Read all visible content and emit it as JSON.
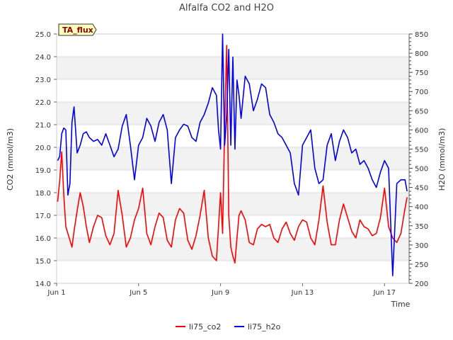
{
  "chart_data": {
    "type": "line",
    "title": "Alfalfa CO2 and H2O",
    "xlabel": "Time",
    "ylabel": "CO2 (mmol/m3)",
    "y2label": "H2O (mmol/m3)",
    "annotation": "TA_flux",
    "x_ticks": [
      {
        "label": "Jun 1",
        "day": 1
      },
      {
        "label": "Jun 5",
        "day": 5
      },
      {
        "label": "Jun 9",
        "day": 9
      },
      {
        "label": "Jun 13",
        "day": 13
      },
      {
        "label": "Jun 17",
        "day": 17
      }
    ],
    "xlim": [
      1,
      18.2
    ],
    "ylim": [
      14.0,
      25.0
    ],
    "y2lim": [
      200,
      850
    ],
    "y_ticks": [
      "14.0",
      "15.0",
      "16.0",
      "17.0",
      "18.0",
      "19.0",
      "20.0",
      "21.0",
      "22.0",
      "23.0",
      "24.0",
      "25.0"
    ],
    "y2_ticks": [
      "200",
      "250",
      "300",
      "350",
      "400",
      "450",
      "500",
      "550",
      "600",
      "650",
      "700",
      "750",
      "800",
      "850"
    ],
    "grid": true,
    "legend_position": "bottom",
    "series": [
      {
        "name": "li75_co2",
        "color": "#ff0000",
        "axis": "left",
        "x": [
          1.05,
          1.15,
          1.25,
          1.35,
          1.45,
          1.55,
          1.65,
          1.75,
          1.85,
          2.0,
          2.15,
          2.3,
          2.45,
          2.6,
          2.8,
          3.0,
          3.2,
          3.4,
          3.6,
          3.8,
          4.0,
          4.2,
          4.4,
          4.6,
          4.8,
          5.0,
          5.2,
          5.4,
          5.6,
          5.8,
          6.0,
          6.2,
          6.4,
          6.6,
          6.8,
          7.0,
          7.2,
          7.4,
          7.6,
          7.8,
          8.0,
          8.2,
          8.4,
          8.6,
          8.8,
          8.9,
          9.0,
          9.1,
          9.2,
          9.3,
          9.4,
          9.5,
          9.6,
          9.7,
          9.8,
          9.9,
          10.0,
          10.2,
          10.4,
          10.6,
          10.8,
          11.0,
          11.2,
          11.4,
          11.6,
          11.8,
          12.0,
          12.2,
          12.4,
          12.6,
          12.8,
          13.0,
          13.2,
          13.4,
          13.6,
          13.8,
          14.0,
          14.2,
          14.4,
          14.6,
          14.8,
          15.0,
          15.2,
          15.4,
          15.6,
          15.8,
          16.0,
          16.2,
          16.4,
          16.6,
          16.8,
          17.0,
          17.2,
          17.4,
          17.6,
          17.8,
          18.0,
          18.1
        ],
        "values": [
          17.6,
          18.5,
          19.8,
          17.9,
          16.5,
          16.2,
          15.9,
          15.6,
          16.3,
          17.2,
          18.0,
          17.4,
          16.5,
          15.8,
          16.5,
          17.0,
          16.9,
          16.1,
          15.7,
          16.2,
          18.1,
          17.0,
          15.6,
          16.0,
          16.8,
          17.3,
          18.2,
          16.2,
          15.7,
          16.5,
          17.1,
          16.9,
          15.9,
          15.6,
          16.8,
          17.3,
          17.1,
          15.9,
          15.5,
          16.1,
          17.0,
          18.1,
          16.0,
          15.2,
          15.0,
          16.5,
          18.0,
          16.2,
          21.0,
          24.5,
          17.0,
          15.6,
          15.2,
          14.9,
          16.0,
          17.0,
          17.2,
          16.8,
          15.8,
          15.7,
          16.4,
          16.6,
          16.5,
          16.6,
          16.0,
          15.8,
          16.4,
          16.7,
          16.2,
          15.9,
          16.5,
          16.8,
          16.7,
          16.0,
          15.7,
          16.8,
          18.3,
          16.7,
          15.7,
          15.7,
          16.8,
          17.5,
          16.9,
          16.3,
          16.0,
          16.8,
          16.5,
          16.4,
          16.1,
          16.2,
          16.9,
          18.2,
          16.5,
          16.0,
          15.8,
          16.2,
          17.3,
          17.8
        ]
      },
      {
        "name": "li75_h2o",
        "color": "#0000ee",
        "axis": "right",
        "x": [
          1.05,
          1.15,
          1.25,
          1.35,
          1.45,
          1.55,
          1.65,
          1.75,
          1.85,
          2.0,
          2.15,
          2.3,
          2.45,
          2.6,
          2.8,
          3.0,
          3.2,
          3.4,
          3.6,
          3.8,
          4.0,
          4.2,
          4.4,
          4.6,
          4.8,
          5.0,
          5.2,
          5.4,
          5.6,
          5.8,
          6.0,
          6.2,
          6.4,
          6.6,
          6.8,
          7.0,
          7.2,
          7.4,
          7.6,
          7.8,
          8.0,
          8.2,
          8.4,
          8.6,
          8.8,
          8.9,
          9.0,
          9.1,
          9.2,
          9.3,
          9.4,
          9.5,
          9.6,
          9.7,
          9.8,
          9.9,
          10.0,
          10.2,
          10.4,
          10.6,
          10.8,
          11.0,
          11.2,
          11.4,
          11.6,
          11.8,
          12.0,
          12.2,
          12.4,
          12.6,
          12.8,
          13.0,
          13.2,
          13.4,
          13.6,
          13.8,
          14.0,
          14.2,
          14.4,
          14.6,
          14.8,
          15.0,
          15.2,
          15.4,
          15.6,
          15.8,
          16.0,
          16.2,
          16.4,
          16.6,
          16.8,
          17.0,
          17.2,
          17.4,
          17.6,
          17.8,
          18.0,
          18.1
        ],
        "values": [
          520,
          530,
          590,
          605,
          600,
          430,
          460,
          620,
          660,
          540,
          560,
          590,
          595,
          580,
          570,
          575,
          560,
          590,
          560,
          530,
          550,
          610,
          640,
          560,
          470,
          560,
          580,
          630,
          610,
          570,
          620,
          640,
          600,
          460,
          580,
          600,
          615,
          610,
          580,
          570,
          620,
          640,
          670,
          710,
          690,
          600,
          550,
          880,
          560,
          640,
          810,
          560,
          790,
          550,
          730,
          690,
          630,
          740,
          720,
          650,
          680,
          720,
          710,
          640,
          620,
          590,
          580,
          560,
          540,
          460,
          430,
          560,
          580,
          600,
          500,
          460,
          470,
          560,
          590,
          520,
          570,
          600,
          580,
          540,
          550,
          510,
          520,
          500,
          470,
          450,
          490,
          520,
          500,
          220,
          460,
          470,
          470,
          440
        ]
      }
    ]
  }
}
